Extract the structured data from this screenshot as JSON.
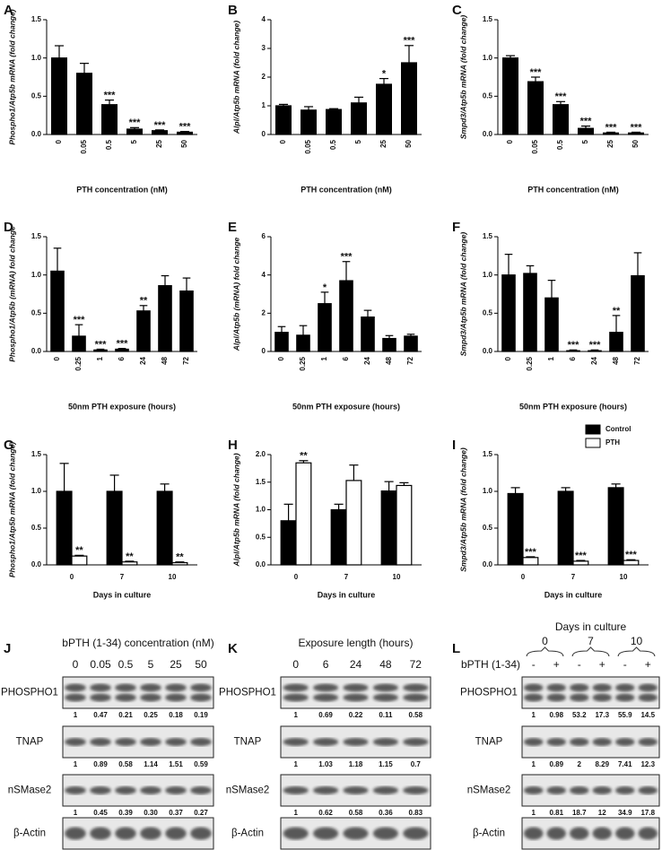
{
  "chart_data": [
    {
      "type": "bar",
      "label": "A",
      "ylabel": "Phospho1/Atp5b mRNA (fold change)",
      "xlabel": "PTH concentration (nM)",
      "categories": [
        "0",
        "0.05",
        "0.5",
        "5",
        "25",
        "50"
      ],
      "color": "#000000",
      "values": [
        1.0,
        0.8,
        0.39,
        0.07,
        0.05,
        0.03
      ],
      "errors": [
        0.16,
        0.13,
        0.06,
        0.02,
        0.01,
        0.01
      ],
      "annotations": [
        null,
        null,
        "***",
        "***",
        "***",
        "***"
      ],
      "ylim": [
        0,
        1.5
      ],
      "yticks": [
        {
          "value": 0,
          "label": "0.0"
        },
        {
          "value": 0.5,
          "label": "0.5"
        },
        {
          "value": 1,
          "label": "1.0"
        },
        {
          "value": 1.5,
          "label": "1.5"
        }
      ]
    },
    {
      "type": "bar",
      "label": "B",
      "ylabel": "Alpl/Atp5b mRNA (fold change)",
      "xlabel": "PTH concentration (nM)",
      "categories": [
        "0",
        "0.05",
        "0.5",
        "5",
        "25",
        "50"
      ],
      "color": "#000000",
      "values": [
        1.0,
        0.85,
        0.87,
        1.1,
        1.75,
        2.5
      ],
      "errors": [
        0.05,
        0.12,
        0.03,
        0.2,
        0.2,
        0.6
      ],
      "annotations": [
        null,
        null,
        null,
        null,
        "*",
        "***"
      ],
      "ylim": [
        0,
        4
      ],
      "yticks": [
        0,
        1,
        2,
        3,
        4
      ]
    },
    {
      "type": "bar",
      "label": "C",
      "ylabel": "Smpd3/Atp5b mRNA (fold change)",
      "xlabel": "PTH concentration (nM)",
      "categories": [
        "0",
        "0.05",
        "0.5",
        "5",
        "25",
        "50"
      ],
      "color": "#000000",
      "values": [
        1.0,
        0.69,
        0.39,
        0.08,
        0.02,
        0.02
      ],
      "errors": [
        0.03,
        0.06,
        0.04,
        0.03,
        0.01,
        0.01
      ],
      "annotations": [
        null,
        "***",
        "***",
        "***",
        "***",
        "***"
      ],
      "ylim": [
        0,
        1.5
      ],
      "yticks": [
        {
          "value": 0,
          "label": "0.0"
        },
        {
          "value": 0.5,
          "label": "0.5"
        },
        {
          "value": 1,
          "label": "1.0"
        },
        {
          "value": 1.5,
          "label": "1.5"
        }
      ]
    },
    {
      "type": "bar",
      "label": "D",
      "ylabel": "Phospho1/Atp5b (mRNA) fold change",
      "xlabel": "50nm PTH exposure (hours)",
      "categories": [
        "0",
        "0.25",
        "1",
        "6",
        "24",
        "48",
        "72"
      ],
      "color": "#000000",
      "values": [
        1.05,
        0.2,
        0.02,
        0.03,
        0.53,
        0.86,
        0.79
      ],
      "errors": [
        0.3,
        0.15,
        0.01,
        0.01,
        0.07,
        0.13,
        0.17
      ],
      "annotations": [
        null,
        "***",
        "***",
        "***",
        "**",
        null,
        null
      ],
      "ylim": [
        0,
        1.5
      ],
      "yticks": [
        {
          "value": 0,
          "label": "0.0"
        },
        {
          "value": 0.5,
          "label": "0.5"
        },
        {
          "value": 1,
          "label": "1.0"
        },
        {
          "value": 1.5,
          "label": "1.5"
        }
      ]
    },
    {
      "type": "bar",
      "label": "E",
      "ylabel": "Alpl/Atp5b (mRNA) fold change",
      "xlabel": "50nm PTH exposure (hours)",
      "categories": [
        "0",
        "0.25",
        "1",
        "6",
        "24",
        "48",
        "72"
      ],
      "color": "#000000",
      "values": [
        1.0,
        0.85,
        2.5,
        3.7,
        1.8,
        0.68,
        0.8
      ],
      "errors": [
        0.3,
        0.5,
        0.6,
        1.0,
        0.35,
        0.15,
        0.1
      ],
      "annotations": [
        null,
        null,
        "*",
        "***",
        null,
        null,
        null
      ],
      "ylim": [
        0,
        6
      ],
      "yticks": [
        0,
        2,
        4,
        6
      ]
    },
    {
      "type": "bar",
      "label": "F",
      "ylabel": "Smpd3/Atp5b mRNA (fold change)",
      "xlabel": "50nm PTH exposure (hours)",
      "categories": [
        "0",
        "0.25",
        "1",
        "6",
        "24",
        "48",
        "72"
      ],
      "color": "#000000",
      "values": [
        1.0,
        1.02,
        0.7,
        0.01,
        0.01,
        0.25,
        0.99
      ],
      "errors": [
        0.27,
        0.1,
        0.23,
        0.01,
        0.01,
        0.22,
        0.3
      ],
      "annotations": [
        null,
        null,
        null,
        "***",
        "***",
        "**",
        null
      ],
      "ylim": [
        0,
        1.5
      ],
      "yticks": [
        {
          "value": 0,
          "label": "0.0"
        },
        {
          "value": 0.5,
          "label": "0.5"
        },
        {
          "value": 1,
          "label": "1.0"
        },
        {
          "value": 1.5,
          "label": "1.5"
        }
      ]
    },
    {
      "type": "bar",
      "label": "G",
      "ylabel": "Phospho1/Atp5b mRNA (fold change)",
      "xlabel": "Days in culture",
      "categories": [
        "0",
        "7",
        "10"
      ],
      "series": [
        {
          "color": "#000000",
          "values": [
            1.0,
            1.0,
            1.0
          ],
          "errors": [
            0.38,
            0.22,
            0.1
          ],
          "annotations": [
            null,
            null,
            null
          ]
        },
        {
          "color": "#ffffff",
          "values": [
            0.12,
            0.04,
            0.03
          ],
          "errors": [
            0.01,
            0.01,
            0.01
          ],
          "annotations": [
            "**",
            "**",
            "**"
          ]
        }
      ],
      "ylim": [
        0,
        1.5
      ],
      "yticks": [
        {
          "value": 0,
          "label": "0.0"
        },
        {
          "value": 0.5,
          "label": "0.5"
        },
        {
          "value": 1,
          "label": "1.0"
        },
        {
          "value": 1.5,
          "label": "1.5"
        }
      ]
    },
    {
      "type": "bar",
      "label": "H",
      "ylabel": "Alpl/Atp5b mRNA (fold change)",
      "xlabel": "Days in culture",
      "categories": [
        "0",
        "7",
        "10"
      ],
      "series": [
        {
          "color": "#000000",
          "values": [
            0.8,
            1.0,
            1.34
          ],
          "errors": [
            0.3,
            0.1,
            0.17
          ],
          "annotations": [
            null,
            null,
            null
          ]
        },
        {
          "color": "#ffffff",
          "values": [
            1.85,
            1.53,
            1.44
          ],
          "errors": [
            0.04,
            0.28,
            0.05
          ],
          "annotations": [
            "**",
            null,
            null
          ]
        }
      ],
      "ylim": [
        0,
        2
      ],
      "yticks": [
        {
          "value": 0,
          "label": "0.0"
        },
        {
          "value": 0.5,
          "label": "0.5"
        },
        {
          "value": 1,
          "label": "1.0"
        },
        {
          "value": 1.5,
          "label": "1.5"
        },
        {
          "value": 2,
          "label": "2.0"
        }
      ]
    },
    {
      "type": "bar",
      "label": "I",
      "ylabel": "Smpd3/Atp5b mRNA (fold change)",
      "xlabel": "Days in culture",
      "categories": [
        "0",
        "7",
        "10"
      ],
      "legend": "top-right",
      "series": [
        {
          "name": "Control",
          "color": "#000000",
          "values": [
            0.97,
            1.0,
            1.05
          ],
          "errors": [
            0.08,
            0.05,
            0.05
          ],
          "annotations": [
            null,
            null,
            null
          ]
        },
        {
          "name": "PTH",
          "color": "#ffffff",
          "values": [
            0.1,
            0.05,
            0.06
          ],
          "errors": [
            0.01,
            0.01,
            0.01
          ],
          "annotations": [
            "***",
            "***",
            "***"
          ]
        }
      ],
      "ylim": [
        0,
        1.5
      ],
      "yticks": [
        {
          "value": 0,
          "label": "0.0"
        },
        {
          "value": 0.5,
          "label": "0.5"
        },
        {
          "value": 1,
          "label": "1.0"
        },
        {
          "value": 1.5,
          "label": "1.5"
        }
      ]
    }
  ],
  "blots": [
    {
      "label": "J",
      "title": "bPTH (1-34) concentration (nM)",
      "lanes": [
        "0",
        "0.05",
        "0.5",
        "5",
        "25",
        "50"
      ],
      "rows": [
        {
          "name": "PHOSPHO1",
          "quants": [
            "1",
            "0.47",
            "0.21",
            "0.25",
            "0.18",
            "0.19"
          ]
        },
        {
          "name": "TNAP",
          "quants": [
            "1",
            "0.89",
            "0.58",
            "1.14",
            "1.51",
            "0.59"
          ]
        },
        {
          "name": "nSMase2",
          "quants": [
            "1",
            "0.45",
            "0.39",
            "0.30",
            "0.37",
            "0.27"
          ]
        },
        {
          "name": "β-Actin"
        }
      ]
    },
    {
      "label": "K",
      "title": "Exposure length (hours)",
      "lanes": [
        "0",
        "6",
        "24",
        "48",
        "72"
      ],
      "rows": [
        {
          "name": "PHOSPHO1",
          "quants": [
            "1",
            "0.69",
            "0.22",
            "0.11",
            "0.58"
          ]
        },
        {
          "name": "TNAP",
          "quants": [
            "1",
            "1.03",
            "1.18",
            "1.15",
            "0.7"
          ]
        },
        {
          "name": "nSMase2",
          "quants": [
            "1",
            "0.62",
            "0.58",
            "0.36",
            "0.83"
          ]
        },
        {
          "name": "β-Actin"
        }
      ]
    },
    {
      "label": "L",
      "title": "Days in culture",
      "groups": [
        "0",
        "7",
        "10"
      ],
      "treatment": "bPTH (1-34)",
      "lanes": [
        "-",
        "+",
        "-",
        "+",
        "-",
        "+"
      ],
      "rows": [
        {
          "name": "PHOSPHO1",
          "quants": [
            "1",
            "0.98",
            "53.2",
            "17.3",
            "55.9",
            "14.5"
          ]
        },
        {
          "name": "TNAP",
          "quants": [
            "1",
            "0.89",
            "2",
            "8.29",
            "7.41",
            "12.3"
          ]
        },
        {
          "name": "nSMase2",
          "quants": [
            "1",
            "0.81",
            "18.7",
            "12",
            "34.9",
            "17.8"
          ]
        },
        {
          "name": "β-Actin"
        }
      ]
    }
  ]
}
